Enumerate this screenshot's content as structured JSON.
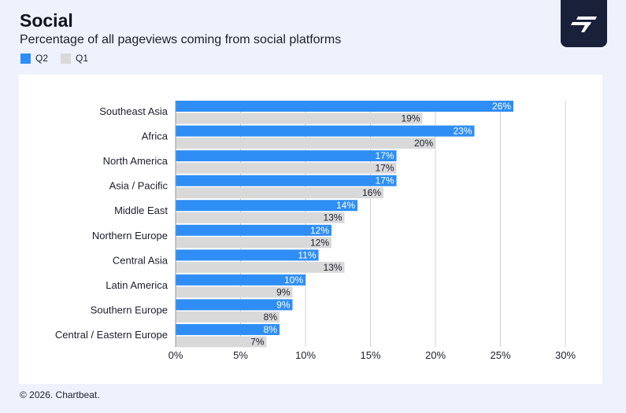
{
  "header": {
    "title": "Social",
    "subtitle": "Percentage of all pageviews coming from social platforms"
  },
  "legend": [
    {
      "label": "Q2",
      "color": "#2f8ef5"
    },
    {
      "label": "Q1",
      "color": "#d9d9d9"
    }
  ],
  "logo": {
    "icon": "chartbeat-logo-icon"
  },
  "footer": {
    "copyright": "© 2026. Chartbeat."
  },
  "chart_data": {
    "type": "bar",
    "orientation": "horizontal",
    "title": "Social",
    "subtitle": "Percentage of all pageviews coming from social platforms",
    "categories": [
      "Southeast Asia",
      "Africa",
      "North America",
      "Asia / Pacific",
      "Middle East",
      "Northern Europe",
      "Central Asia",
      "Latin America",
      "Southern Europe",
      "Central / Eastern Europe"
    ],
    "series": [
      {
        "name": "Q2",
        "color": "#2f8ef5",
        "values": [
          26,
          23,
          17,
          17,
          14,
          12,
          11,
          10,
          9,
          8
        ],
        "labels": [
          "26%",
          "23%",
          "17%",
          "17%",
          "14%",
          "12%",
          "11%",
          "10%",
          "9%",
          "8%"
        ]
      },
      {
        "name": "Q1",
        "color": "#d9d9d9",
        "values": [
          19,
          20,
          17,
          16,
          13,
          12,
          13,
          9,
          8,
          7
        ],
        "labels": [
          "19%",
          "20%",
          "17%",
          "16%",
          "13%",
          "12%",
          "13%",
          "9%",
          "8%",
          "7%"
        ]
      }
    ],
    "xlim": [
      0,
      30
    ],
    "xticks": [
      0,
      5,
      10,
      15,
      20,
      25,
      30
    ],
    "xtick_labels": [
      "0%",
      "5%",
      "10%",
      "15%",
      "20%",
      "25%",
      "30%"
    ],
    "grid": "vertical",
    "legend_position": "top-left"
  }
}
